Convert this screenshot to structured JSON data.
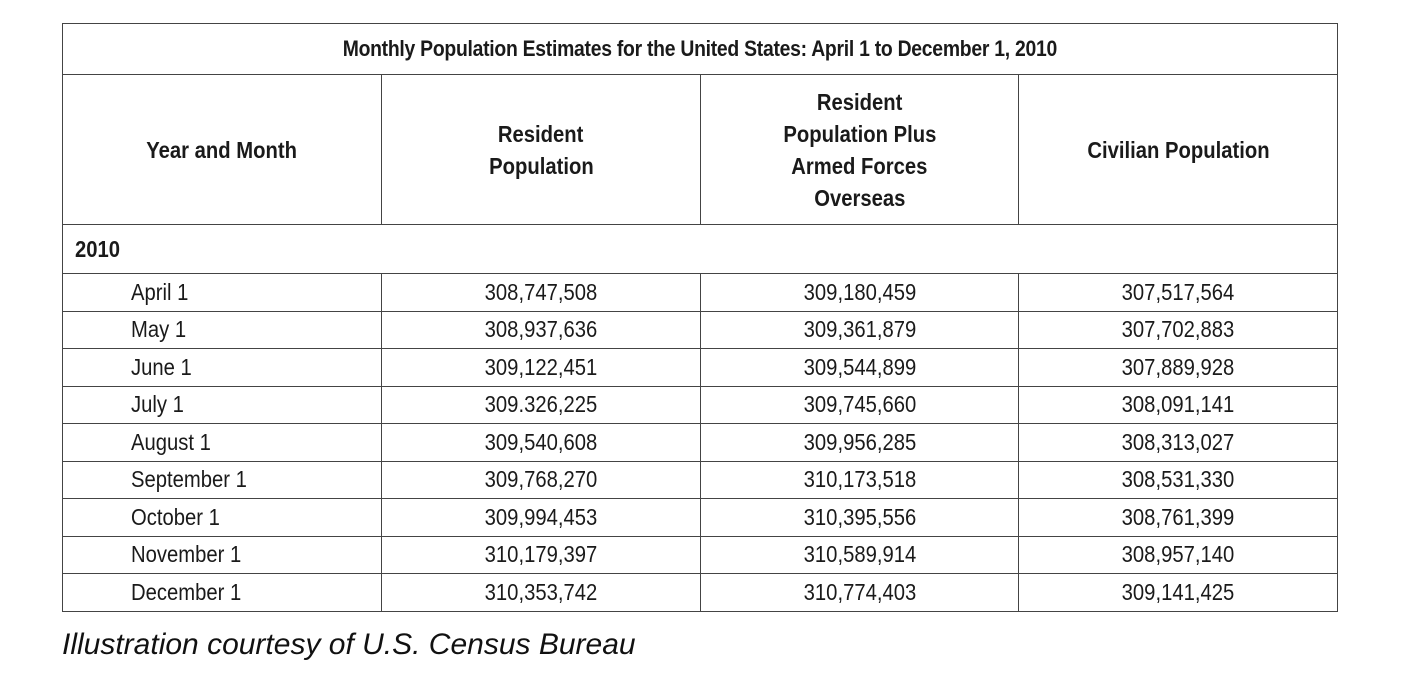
{
  "table": {
    "title": "Monthly Population Estimates for the United States: April 1 to December 1, 2010",
    "headers": [
      "Year and Month",
      "Resident Population",
      "Resident Population Plus Armed Forces Overseas",
      "Civilian Population"
    ],
    "header_lines": [
      [
        "Year and Month"
      ],
      [
        "Resident",
        "Population"
      ],
      [
        "Resident",
        "Population Plus",
        "Armed Forces",
        "Overseas"
      ],
      [
        "Civilian Population"
      ]
    ],
    "year_label": "2010",
    "rows": [
      {
        "month": "April 1",
        "resident": "308,747,508",
        "resident_plus": "309,180,459",
        "civilian": "307,517,564"
      },
      {
        "month": "May 1",
        "resident": "308,937,636",
        "resident_plus": "309,361,879",
        "civilian": "307,702,883"
      },
      {
        "month": "June 1",
        "resident": "309,122,451",
        "resident_plus": "309,544,899",
        "civilian": "307,889,928"
      },
      {
        "month": "July 1",
        "resident": "309.326,225",
        "resident_plus": "309,745,660",
        "civilian": "308,091,141"
      },
      {
        "month": "August 1",
        "resident": "309,540,608",
        "resident_plus": "309,956,285",
        "civilian": "308,313,027"
      },
      {
        "month": "September 1",
        "resident": "309,768,270",
        "resident_plus": "310,173,518",
        "civilian": "308,531,330"
      },
      {
        "month": "October 1",
        "resident": "309,994,453",
        "resident_plus": "310,395,556",
        "civilian": "308,761,399"
      },
      {
        "month": "November 1",
        "resident": "310,179,397",
        "resident_plus": "310,589,914",
        "civilian": "308,957,140"
      },
      {
        "month": "December 1",
        "resident": "310,353,742",
        "resident_plus": "310,774,403",
        "civilian": "309,141,425"
      }
    ]
  },
  "caption": "Illustration courtesy of U.S. Census Bureau",
  "colors": {
    "border": "#444444",
    "text": "#1a1a1a",
    "background": "#ffffff"
  }
}
